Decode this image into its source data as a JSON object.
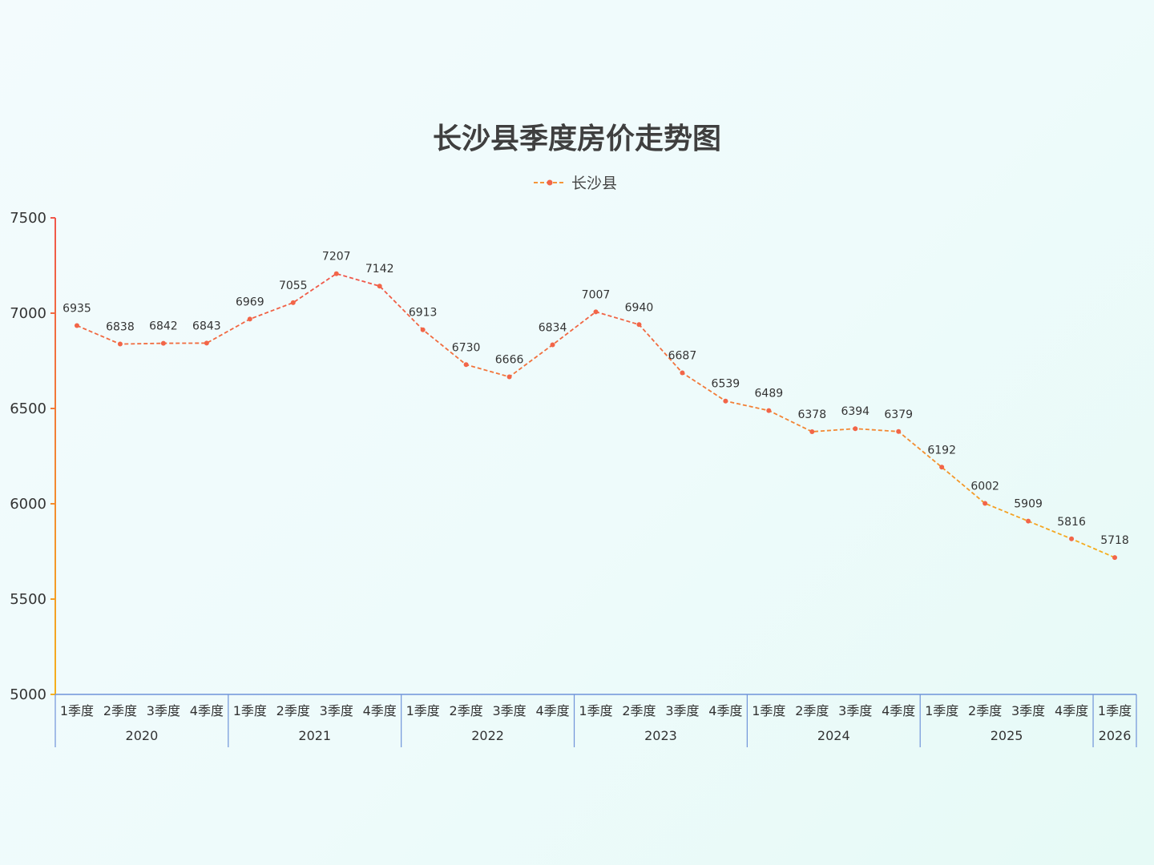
{
  "chart_data": {
    "type": "line",
    "title": "长沙县季度房价走势图",
    "legend": {
      "position": "top-center",
      "entries": [
        "长沙县"
      ]
    },
    "ylim": [
      5000,
      7500
    ],
    "yticks": [
      5000,
      5500,
      6000,
      6500,
      7000,
      7500
    ],
    "grid": false,
    "x": [
      "2020 1季度",
      "2020 2季度",
      "2020 3季度",
      "2020 4季度",
      "2021 1季度",
      "2021 2季度",
      "2021 3季度",
      "2021 4季度",
      "2022 1季度",
      "2022 2季度",
      "2022 3季度",
      "2022 4季度",
      "2023 1季度",
      "2023 2季度",
      "2023 3季度",
      "2023 4季度",
      "2024 1季度",
      "2024 2季度",
      "2024 3季度",
      "2024 4季度",
      "2025 1季度",
      "2025 2季度",
      "2025 3季度",
      "2025 4季度",
      "2026 1季度"
    ],
    "quarter_labels": [
      "1季度",
      "2季度",
      "3季度",
      "4季度",
      "1季度",
      "2季度",
      "3季度",
      "4季度",
      "1季度",
      "2季度",
      "3季度",
      "4季度",
      "1季度",
      "2季度",
      "3季度",
      "4季度",
      "1季度",
      "2季度",
      "3季度",
      "4季度",
      "1季度",
      "2季度",
      "3季度",
      "4季度",
      "1季度"
    ],
    "year_groups": [
      {
        "label": "2020",
        "count": 4
      },
      {
        "label": "2021",
        "count": 4
      },
      {
        "label": "2022",
        "count": 4
      },
      {
        "label": "2023",
        "count": 4
      },
      {
        "label": "2024",
        "count": 4
      },
      {
        "label": "2025",
        "count": 4
      },
      {
        "label": "2026",
        "count": 1
      }
    ],
    "series": [
      {
        "name": "长沙县",
        "values": [
          6935,
          6838,
          6842,
          6843,
          6969,
          7055,
          7207,
          7142,
          6913,
          6730,
          6666,
          6834,
          7007,
          6940,
          6687,
          6539,
          6489,
          6378,
          6394,
          6379,
          6192,
          6002,
          5909,
          5816,
          5718
        ]
      }
    ],
    "colors": {
      "line_high": "#f0564a",
      "line_low": "#f5b01c",
      "marker": "#f26548",
      "legend_line": "#f5953a",
      "x_axis": "#6f93d9",
      "title": "#3f3f3f"
    }
  }
}
